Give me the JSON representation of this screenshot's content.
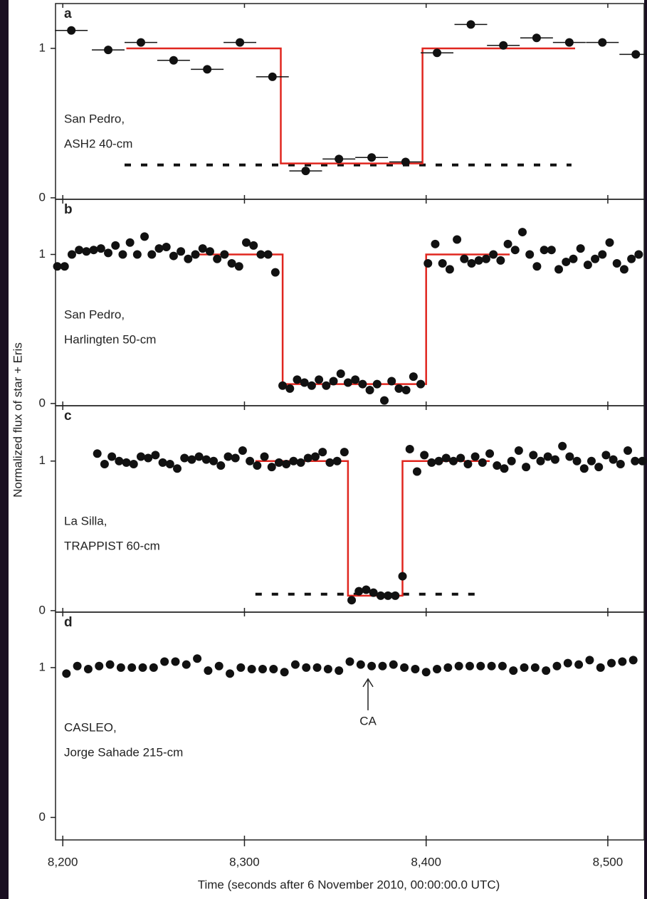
{
  "ylabel": "Normalized flux of star + Eris",
  "xlabel": "Time (seconds after 6 November 2010, 00:00:00.0 UTC)",
  "chart_data": [
    {
      "type": "scatter",
      "panel": "a",
      "annotation": [
        "San Pedro,",
        "ASH2 40-cm"
      ],
      "ylim": [
        -0.01,
        1.3
      ],
      "yticks": [
        0,
        1
      ],
      "xerr": 9,
      "points": {
        "color": "#111111",
        "x": [
          8204.7,
          8225,
          8243,
          8261,
          8279.5,
          8297.5,
          8315.4,
          8333.7,
          8352,
          8370,
          8388.7,
          8406,
          8424.6,
          8442.5,
          8460.8,
          8478.8,
          8497,
          8515.4
        ],
        "y": [
          1.12,
          0.99,
          1.04,
          0.92,
          0.86,
          1.04,
          0.81,
          0.18,
          0.26,
          0.27,
          0.24,
          0.97,
          1.16,
          1.02,
          1.07,
          1.04,
          1.04,
          0.96
        ]
      },
      "model": {
        "color": "#e0261f",
        "x": [
          8235,
          8320,
          8320,
          8398,
          8398,
          8482
        ],
        "y": [
          1,
          1,
          0.23,
          0.23,
          1,
          1
        ]
      },
      "dotted": {
        "color": "#111111",
        "x": [
          8234,
          8480
        ],
        "y": [
          0.22,
          0.22
        ]
      }
    },
    {
      "type": "scatter",
      "panel": "b",
      "annotation": [
        "San Pedro,",
        "Harlingten 50-cm"
      ],
      "ylim": [
        -0.015,
        1.37
      ],
      "yticks": [
        0,
        1
      ],
      "points": {
        "color": "#111111",
        "x": [
          8197,
          8201,
          8205,
          8209,
          8213,
          8217,
          8221,
          8225,
          8229,
          8233,
          8237,
          8241,
          8245,
          8249,
          8253,
          8257,
          8261,
          8265,
          8269,
          8273,
          8277,
          8281,
          8285,
          8289,
          8293,
          8297,
          8301,
          8305,
          8309,
          8313,
          8317,
          8321,
          8325,
          8329,
          8333,
          8337,
          8341,
          8345,
          8349,
          8353,
          8357,
          8361,
          8365,
          8369,
          8373,
          8377,
          8381,
          8385,
          8389,
          8393,
          8397,
          8401,
          8405,
          8409,
          8413,
          8417,
          8421,
          8425,
          8429,
          8433,
          8437,
          8441,
          8445,
          8449,
          8453,
          8457,
          8461,
          8465,
          8469,
          8473,
          8477,
          8481,
          8485,
          8489,
          8493,
          8497,
          8501,
          8505,
          8509,
          8513,
          8517
        ],
        "y": [
          0.92,
          0.92,
          1.0,
          1.03,
          1.02,
          1.03,
          1.04,
          1.01,
          1.06,
          1.0,
          1.08,
          1.0,
          1.12,
          1.0,
          1.04,
          1.05,
          0.99,
          1.02,
          0.97,
          1.0,
          1.04,
          1.02,
          0.97,
          1.0,
          0.94,
          0.92,
          1.08,
          1.06,
          1.0,
          1.0,
          0.88,
          0.12,
          0.1,
          0.16,
          0.14,
          0.12,
          0.16,
          0.12,
          0.15,
          0.2,
          0.14,
          0.16,
          0.13,
          0.09,
          0.13,
          0.02,
          0.15,
          0.1,
          0.09,
          0.18,
          0.13,
          0.94,
          1.07,
          0.94,
          0.9,
          1.1,
          0.97,
          0.94,
          0.96,
          0.97,
          1.0,
          0.96,
          1.07,
          1.03,
          1.15,
          1.0,
          0.92,
          1.03,
          1.03,
          0.9,
          0.95,
          0.97,
          1.04,
          0.93,
          0.97,
          1.0,
          1.08,
          0.94,
          0.9,
          0.97,
          1.0
        ]
      },
      "model": {
        "color": "#e0261f",
        "x": [
          8275,
          8321,
          8321,
          8400,
          8400,
          8446
        ],
        "y": [
          1,
          1,
          0.13,
          0.13,
          1,
          1
        ]
      }
    },
    {
      "type": "scatter",
      "panel": "c",
      "annotation": [
        "La Silla,",
        "TRAPPIST 60-cm"
      ],
      "ylim": [
        -0.01,
        1.37
      ],
      "yticks": [
        0,
        1
      ],
      "points": {
        "color": "#111111",
        "x": [
          8219,
          8223,
          8227,
          8231,
          8235,
          8239,
          8243,
          8247,
          8251,
          8255,
          8259,
          8263,
          8267,
          8271,
          8275,
          8279,
          8283,
          8287,
          8291,
          8295,
          8299,
          8303,
          8307,
          8311,
          8315,
          8319,
          8323,
          8327,
          8331,
          8335,
          8339,
          8343,
          8347,
          8351,
          8355,
          8359,
          8363,
          8367,
          8371,
          8375,
          8379,
          8383,
          8387,
          8391,
          8395,
          8399,
          8403,
          8407,
          8411,
          8415,
          8419,
          8423,
          8427,
          8431,
          8435,
          8439,
          8443,
          8447,
          8451,
          8455,
          8459,
          8463,
          8467,
          8471,
          8475,
          8479,
          8483,
          8487,
          8491,
          8495,
          8499,
          8503,
          8507,
          8511,
          8515,
          8519
        ],
        "y": [
          1.05,
          0.98,
          1.03,
          1.0,
          0.99,
          0.98,
          1.03,
          1.02,
          1.04,
          0.99,
          0.98,
          0.95,
          1.02,
          1.01,
          1.03,
          1.01,
          1.0,
          0.97,
          1.03,
          1.02,
          1.07,
          1.0,
          0.97,
          1.03,
          0.96,
          0.99,
          0.98,
          1.0,
          0.99,
          1.02,
          1.03,
          1.06,
          0.99,
          1.0,
          1.06,
          0.07,
          0.13,
          0.14,
          0.12,
          0.1,
          0.1,
          0.1,
          0.23,
          1.08,
          0.93,
          1.04,
          0.99,
          1.0,
          1.02,
          1.0,
          1.02,
          0.98,
          1.03,
          0.99,
          1.05,
          0.97,
          0.95,
          1.0,
          1.07,
          0.96,
          1.04,
          1.0,
          1.03,
          1.01,
          1.1,
          1.03,
          1.0,
          0.95,
          1.0,
          0.96,
          1.04,
          1.01,
          0.98,
          1.07,
          1.0,
          1.0
        ]
      },
      "model": {
        "color": "#e0261f",
        "x": [
          8306,
          8357,
          8357,
          8387,
          8387,
          8435
        ],
        "y": [
          1,
          1,
          0.1,
          0.1,
          1,
          1
        ]
      },
      "dotted": {
        "color": "#111111",
        "x": [
          8306,
          8431
        ],
        "y": [
          0.11,
          0.11
        ]
      }
    },
    {
      "type": "scatter",
      "panel": "d",
      "annotation": [
        "CASLEO,",
        "Jorge Sahade 215-cm"
      ],
      "ylim": [
        -0.15,
        1.37
      ],
      "yticks": [
        0,
        1
      ],
      "xlim": [
        8196,
        8520
      ],
      "xticks": [
        {
          "value": 8200,
          "label": "8,200"
        },
        {
          "value": 8300,
          "label": "8,300"
        },
        {
          "value": 8400,
          "label": "8,400"
        },
        {
          "value": 8500,
          "label": "8,500"
        }
      ],
      "arrow": {
        "text": "CA",
        "x": 8368
      },
      "points": {
        "color": "#111111",
        "x": [
          8202,
          8208,
          8214,
          8220,
          8226,
          8232,
          8238,
          8244,
          8250,
          8256,
          8262,
          8268,
          8274,
          8280,
          8286,
          8292,
          8298,
          8304,
          8310,
          8316,
          8322,
          8328,
          8334,
          8340,
          8346,
          8352,
          8358,
          8364,
          8370,
          8376,
          8382,
          8388,
          8394,
          8400,
          8406,
          8412,
          8418,
          8424,
          8430,
          8436,
          8442,
          8448,
          8454,
          8460,
          8466,
          8472,
          8478,
          8484,
          8490,
          8496,
          8502,
          8508,
          8514
        ],
        "y": [
          0.96,
          1.01,
          0.99,
          1.01,
          1.02,
          1.0,
          1.0,
          1.0,
          1.0,
          1.04,
          1.04,
          1.02,
          1.06,
          0.98,
          1.01,
          0.96,
          1.0,
          0.99,
          0.99,
          0.99,
          0.97,
          1.02,
          1.0,
          1.0,
          0.99,
          0.98,
          1.04,
          1.02,
          1.01,
          1.01,
          1.02,
          1.0,
          0.99,
          0.97,
          0.99,
          1.0,
          1.01,
          1.01,
          1.01,
          1.01,
          1.01,
          0.98,
          1.0,
          1.0,
          0.98,
          1.01,
          1.03,
          1.02,
          1.05,
          1.0,
          1.03,
          1.04,
          1.05
        ]
      }
    }
  ]
}
